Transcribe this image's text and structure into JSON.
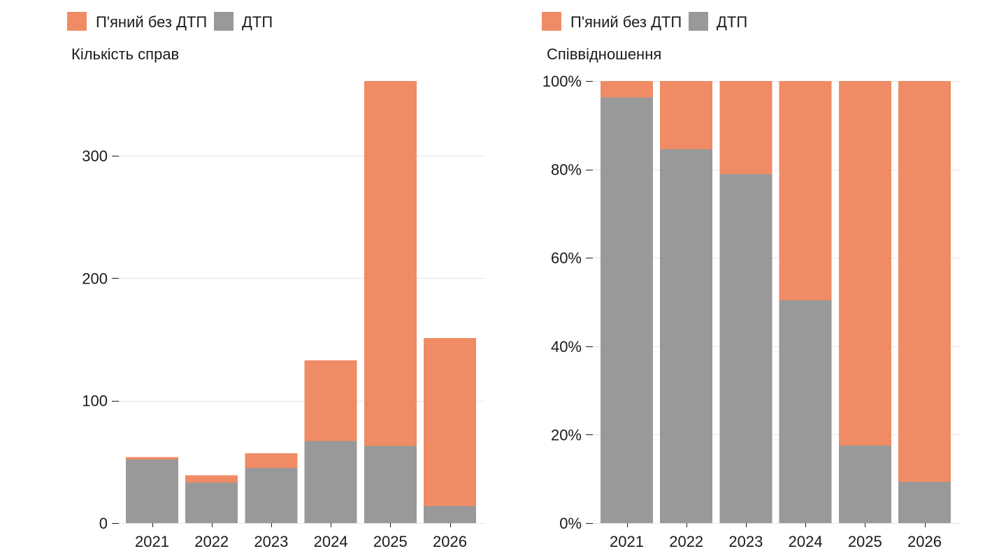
{
  "chart_data": [
    {
      "type": "bar",
      "stacked": true,
      "ylabel": "Кількість справ",
      "categories": [
        "2021",
        "2022",
        "2023",
        "2024",
        "2025",
        "2026"
      ],
      "series": [
        {
          "name": "ДТП",
          "color": "#999999",
          "values": [
            52,
            33,
            45,
            67,
            63,
            14
          ]
        },
        {
          "name": "П'яний без ДТП",
          "color": "#EF8C65",
          "values": [
            2,
            6,
            12,
            66,
            298,
            137
          ]
        }
      ],
      "ylim": [
        0,
        361
      ],
      "yticks": [
        0,
        100,
        200,
        300
      ],
      "ytick_labels": [
        "0",
        "100",
        "200",
        "300"
      ],
      "grid": true,
      "legend": "top-left"
    },
    {
      "type": "bar",
      "stacked": true,
      "ylabel": "Співвідношення",
      "categories": [
        "2021",
        "2022",
        "2023",
        "2024",
        "2025",
        "2026"
      ],
      "series": [
        {
          "name": "ДТП",
          "color": "#999999",
          "values": [
            96.3,
            84.6,
            78.9,
            50.4,
            17.5,
            9.3
          ]
        },
        {
          "name": "П'яний без ДТП",
          "color": "#EF8C65",
          "values": [
            3.7,
            15.4,
            21.1,
            49.6,
            82.5,
            90.7
          ]
        }
      ],
      "ylim": [
        0,
        100
      ],
      "yticks": [
        0,
        20,
        40,
        60,
        80,
        100
      ],
      "ytick_labels": [
        "0%",
        "20%",
        "40%",
        "60%",
        "80%",
        "100%"
      ],
      "grid": true,
      "legend": "top-left"
    }
  ]
}
